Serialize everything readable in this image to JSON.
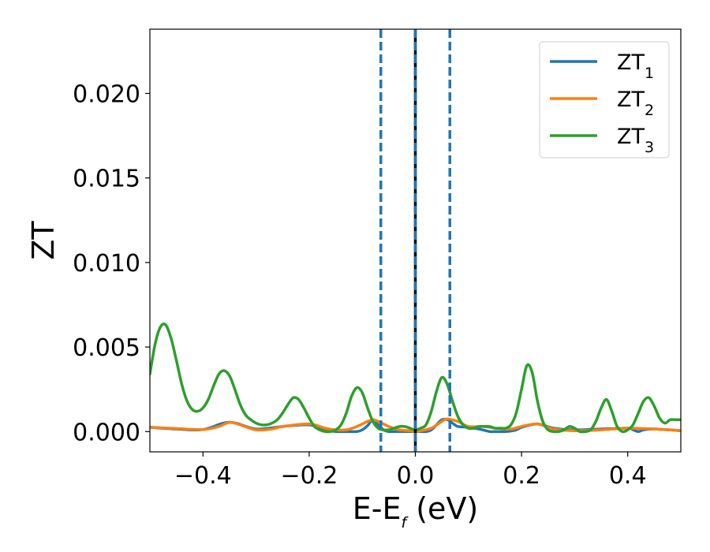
{
  "chart_data": {
    "type": "line",
    "title": "",
    "xlabel_main": "E-E",
    "xlabel_sub": "f",
    "xlabel_unit": " (eV)",
    "ylabel": "ZT",
    "xlim": [
      -0.5,
      0.5
    ],
    "ylim": [
      -0.0012,
      0.0238
    ],
    "x_ticks": [
      -0.4,
      -0.2,
      0.0,
      0.2,
      0.4
    ],
    "x_tick_labels": [
      "−0.4",
      "−0.2",
      "0.0",
      "0.2",
      "0.4"
    ],
    "y_ticks": [
      0.0,
      0.005,
      0.01,
      0.015,
      0.02
    ],
    "y_tick_labels": [
      "0.000",
      "0.005",
      "0.010",
      "0.015",
      "0.020"
    ],
    "grid": false,
    "legend_position": "top-right",
    "vlines": [
      {
        "x": -0.065,
        "style": "dashed",
        "color": "#1f77b4"
      },
      {
        "x": 0.0,
        "style": "solid",
        "color": "#000000"
      },
      {
        "x": 0.0,
        "style": "dashed",
        "color": "#1f77b4"
      },
      {
        "x": 0.065,
        "style": "dashed",
        "color": "#1f77b4"
      }
    ],
    "series": [
      {
        "name_main": "ZT",
        "name_sub": "1",
        "color": "#1f77b4",
        "x": [
          -0.5,
          -0.45,
          -0.4,
          -0.35,
          -0.3,
          -0.25,
          -0.2,
          -0.17,
          -0.15,
          -0.13,
          -0.11,
          -0.1,
          -0.09,
          -0.08,
          -0.07,
          -0.06,
          -0.05,
          -0.04,
          -0.03,
          -0.02,
          -0.01,
          0.0,
          0.01,
          0.02,
          0.03,
          0.04,
          0.05,
          0.06,
          0.07,
          0.08,
          0.1,
          0.12,
          0.14,
          0.15,
          0.17,
          0.19,
          0.2,
          0.23,
          0.26,
          0.3,
          0.35,
          0.4,
          0.41,
          0.42,
          0.43,
          0.45,
          0.5
        ],
        "y": [
          0.00025,
          0.00015,
          0.00012,
          0.00055,
          0.00015,
          0.0003,
          0.0004,
          0.0001,
          0.0,
          0.0,
          0.0,
          0.0001,
          0.00035,
          0.0007,
          0.0004,
          0.0001,
          0.0,
          0.0,
          0.0,
          0.0,
          0.0,
          0.0,
          0.0,
          0.0,
          0.0001,
          0.0004,
          0.0007,
          0.0007,
          0.0005,
          0.0003,
          0.00025,
          0.00015,
          0.0,
          0.0,
          0.0,
          0.0001,
          0.00025,
          0.00045,
          0.0002,
          0.0001,
          0.00015,
          0.0002,
          0.0001,
          0.0,
          0.0001,
          0.00015,
          5e-05
        ]
      },
      {
        "name_main": "ZT",
        "name_sub": "2",
        "color": "#ff7f0e",
        "x": [
          -0.5,
          -0.45,
          -0.4,
          -0.37,
          -0.35,
          -0.33,
          -0.3,
          -0.27,
          -0.25,
          -0.2,
          -0.17,
          -0.15,
          -0.13,
          -0.11,
          -0.09,
          -0.08,
          -0.07,
          -0.05,
          -0.03,
          -0.01,
          0.0,
          0.01,
          0.03,
          0.05,
          0.06,
          0.08,
          0.1,
          0.13,
          0.15,
          0.18,
          0.2,
          0.23,
          0.26,
          0.3,
          0.35,
          0.4,
          0.45,
          0.5
        ],
        "y": [
          0.00025,
          0.00018,
          0.00012,
          0.0003,
          0.00055,
          0.0004,
          0.0001,
          0.00015,
          0.0003,
          0.00045,
          0.0002,
          0.0001,
          0.0001,
          0.0003,
          0.0006,
          0.0007,
          0.0006,
          0.0003,
          0.0001,
          5e-05,
          0.0,
          5e-05,
          0.0002,
          0.0006,
          0.00075,
          0.0006,
          0.0003,
          0.0003,
          0.0002,
          0.00015,
          0.0003,
          0.00045,
          0.00015,
          5e-05,
          0.0001,
          0.0002,
          0.00015,
          5e-05
        ]
      },
      {
        "name_main": "ZT",
        "name_sub": "3",
        "color": "#2ca02c",
        "x": [
          -0.5,
          -0.49,
          -0.48,
          -0.47,
          -0.46,
          -0.45,
          -0.44,
          -0.43,
          -0.42,
          -0.41,
          -0.4,
          -0.39,
          -0.38,
          -0.37,
          -0.36,
          -0.35,
          -0.34,
          -0.33,
          -0.32,
          -0.31,
          -0.3,
          -0.29,
          -0.28,
          -0.27,
          -0.26,
          -0.25,
          -0.24,
          -0.23,
          -0.22,
          -0.21,
          -0.2,
          -0.19,
          -0.18,
          -0.17,
          -0.16,
          -0.15,
          -0.14,
          -0.13,
          -0.12,
          -0.11,
          -0.1,
          -0.09,
          -0.08,
          -0.07,
          -0.06,
          -0.05,
          -0.04,
          -0.03,
          -0.02,
          -0.01,
          0.0,
          0.01,
          0.02,
          0.03,
          0.04,
          0.05,
          0.06,
          0.07,
          0.08,
          0.09,
          0.1,
          0.11,
          0.12,
          0.13,
          0.14,
          0.15,
          0.16,
          0.17,
          0.18,
          0.19,
          0.2,
          0.21,
          0.22,
          0.23,
          0.24,
          0.25,
          0.26,
          0.27,
          0.28,
          0.29,
          0.3,
          0.31,
          0.32,
          0.33,
          0.34,
          0.35,
          0.36,
          0.37,
          0.38,
          0.39,
          0.4,
          0.41,
          0.42,
          0.43,
          0.44,
          0.45,
          0.46,
          0.47,
          0.48,
          0.49,
          0.5
        ],
        "y": [
          0.0034,
          0.0052,
          0.0062,
          0.0063,
          0.0055,
          0.0042,
          0.0028,
          0.0018,
          0.0013,
          0.0012,
          0.0014,
          0.0019,
          0.0027,
          0.0034,
          0.0036,
          0.0033,
          0.0025,
          0.0016,
          0.001,
          0.0007,
          0.0005,
          0.0004,
          0.0004,
          0.0005,
          0.0007,
          0.0011,
          0.0016,
          0.002,
          0.0019,
          0.0014,
          0.0008,
          0.0003,
          0.0001,
          0.0,
          0.0,
          0.0001,
          0.0004,
          0.0011,
          0.0021,
          0.0026,
          0.0023,
          0.0014,
          0.0006,
          0.0002,
          0.0001,
          0.0001,
          0.0002,
          0.0003,
          0.0003,
          0.0002,
          0.0001,
          0.0002,
          0.0004,
          0.0012,
          0.0024,
          0.0032,
          0.0028,
          0.0018,
          0.0009,
          0.0004,
          0.0002,
          0.0002,
          0.0003,
          0.0003,
          0.0003,
          0.0002,
          0.0002,
          0.0002,
          0.0004,
          0.0011,
          0.0025,
          0.0039,
          0.0035,
          0.0018,
          0.0006,
          0.0001,
          0.0,
          0.0,
          0.0001,
          0.0003,
          0.0002,
          0.0,
          0.0,
          0.0001,
          0.0006,
          0.0014,
          0.0019,
          0.0012,
          0.0003,
          0.0,
          0.0001,
          0.0004,
          0.0011,
          0.0018,
          0.002,
          0.0015,
          0.0008,
          0.0005,
          0.0007,
          0.0007,
          0.0007
        ]
      }
    ]
  }
}
